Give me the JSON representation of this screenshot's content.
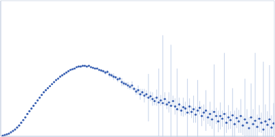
{
  "chart_data": {
    "type": "scatter",
    "xlim": [
      0,
      0.4
    ],
    "ylim": [
      0,
      2
    ],
    "xticks": [
      0.115
    ],
    "yticks": [
      1
    ],
    "grid": true,
    "tick_labels": false,
    "series": [
      {
        "color": "#3b62b3",
        "marker": "circle",
        "x": [
          0.003,
          0.006,
          0.009,
          0.012,
          0.015,
          0.018,
          0.021,
          0.024,
          0.027,
          0.03,
          0.033,
          0.036,
          0.039,
          0.042,
          0.045,
          0.048,
          0.051,
          0.054,
          0.057,
          0.06,
          0.063,
          0.066,
          0.069,
          0.072,
          0.075,
          0.078,
          0.081,
          0.084,
          0.087,
          0.09,
          0.093,
          0.096,
          0.099,
          0.102,
          0.105,
          0.108,
          0.111,
          0.114,
          0.117,
          0.12,
          0.123,
          0.126,
          0.129,
          0.132,
          0.135,
          0.138,
          0.141,
          0.144,
          0.147,
          0.15,
          0.153,
          0.156,
          0.159,
          0.162,
          0.165,
          0.168,
          0.171,
          0.174,
          0.177,
          0.18,
          0.183,
          0.186,
          0.189,
          0.192,
          0.195,
          0.198,
          0.201,
          0.204,
          0.207,
          0.21,
          0.213,
          0.216,
          0.219,
          0.222,
          0.225,
          0.228,
          0.231,
          0.234,
          0.237,
          0.24,
          0.243,
          0.246,
          0.249,
          0.252,
          0.255,
          0.258,
          0.261,
          0.264,
          0.267,
          0.27,
          0.273,
          0.276,
          0.279,
          0.282,
          0.285,
          0.288,
          0.291,
          0.294,
          0.297,
          0.3,
          0.303,
          0.306,
          0.309,
          0.312,
          0.315,
          0.318,
          0.321,
          0.324,
          0.327,
          0.33,
          0.333,
          0.336,
          0.339,
          0.342,
          0.345,
          0.348,
          0.351,
          0.354,
          0.357,
          0.36,
          0.363,
          0.366,
          0.369,
          0.372,
          0.375,
          0.378,
          0.381,
          0.384,
          0.387,
          0.39,
          0.393,
          0.396,
          0.399
        ],
        "values": [
          0.01,
          0.02,
          0.03,
          0.04,
          0.06,
          0.08,
          0.1,
          0.13,
          0.16,
          0.2,
          0.24,
          0.28,
          0.33,
          0.37,
          0.41,
          0.45,
          0.49,
          0.53,
          0.57,
          0.61,
          0.65,
          0.68,
          0.71,
          0.74,
          0.77,
          0.8,
          0.83,
          0.85,
          0.88,
          0.9,
          0.92,
          0.94,
          0.96,
          0.98,
          0.99,
          1.0,
          1.02,
          1.03,
          1.03,
          1.04,
          1.04,
          1.03,
          1.04,
          1.02,
          1.01,
          1.0,
          1.0,
          0.98,
          0.97,
          0.96,
          0.94,
          0.95,
          0.91,
          0.9,
          0.88,
          0.87,
          0.84,
          0.85,
          0.8,
          0.78,
          0.77,
          0.75,
          0.73,
          0.75,
          0.7,
          0.66,
          0.68,
          0.62,
          0.65,
          0.6,
          0.62,
          0.57,
          0.59,
          0.55,
          0.52,
          0.57,
          0.5,
          0.53,
          0.49,
          0.55,
          0.47,
          0.5,
          0.45,
          0.52,
          0.44,
          0.4,
          0.47,
          0.38,
          0.43,
          0.41,
          0.35,
          0.44,
          0.36,
          0.4,
          0.32,
          0.38,
          0.42,
          0.3,
          0.35,
          0.38,
          0.28,
          0.33,
          0.25,
          0.36,
          0.3,
          0.22,
          0.3,
          0.26,
          0.33,
          0.2,
          0.28,
          0.24,
          0.31,
          0.18,
          0.27,
          0.22,
          0.3,
          0.16,
          0.25,
          0.2,
          0.12,
          0.28,
          0.18,
          0.23,
          0.14,
          0.26,
          0.2,
          0.1,
          0.22,
          0.17,
          0.25,
          0.13,
          0.19
        ],
        "errors": [
          0.005,
          0.005,
          0.005,
          0.005,
          0.005,
          0.005,
          0.005,
          0.005,
          0.005,
          0.005,
          0.005,
          0.005,
          0.005,
          0.005,
          0.005,
          0.005,
          0.005,
          0.005,
          0.005,
          0.005,
          0.005,
          0.005,
          0.005,
          0.005,
          0.005,
          0.005,
          0.005,
          0.005,
          0.005,
          0.005,
          0.005,
          0.005,
          0.005,
          0.005,
          0.005,
          0.005,
          0.005,
          0.005,
          0.005,
          0.005,
          0.01,
          0.01,
          0.01,
          0.01,
          0.01,
          0.01,
          0.01,
          0.01,
          0.01,
          0.01,
          0.03,
          0.02,
          0.04,
          0.03,
          0.05,
          0.02,
          0.04,
          0.03,
          0.06,
          0.04,
          0.03,
          0.05,
          0.04,
          0.06,
          0.03,
          0.05,
          0.07,
          0.08,
          0.05,
          0.1,
          0.06,
          0.35,
          0.07,
          0.1,
          0.06,
          0.12,
          0.5,
          0.08,
          1.0,
          0.1,
          0.07,
          0.15,
          0.9,
          0.08,
          0.12,
          0.6,
          0.1,
          0.08,
          0.14,
          0.1,
          0.5,
          0.12,
          0.09,
          0.2,
          0.12,
          0.45,
          0.1,
          0.15,
          0.12,
          0.3,
          0.1,
          0.18,
          0.14,
          0.7,
          0.12,
          0.16,
          0.2,
          0.12,
          0.9,
          0.15,
          0.18,
          0.13,
          0.4,
          0.2,
          0.15,
          0.17,
          0.25,
          0.14,
          0.6,
          0.2,
          0.16,
          0.5,
          0.22,
          1.0,
          0.18,
          0.2,
          0.15,
          1.0,
          0.25,
          0.2,
          0.8,
          0.18,
          0.3
        ]
      }
    ]
  }
}
